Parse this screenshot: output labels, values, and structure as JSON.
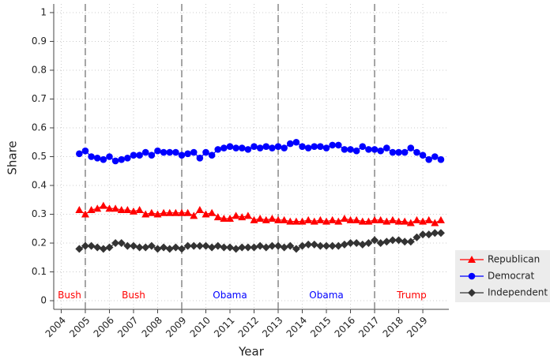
{
  "chart_data": {
    "type": "line",
    "x_label": "Year",
    "y_label": "Share",
    "x": [
      2004.75,
      2005,
      2005.25,
      2005.5,
      2005.75,
      2006,
      2006.25,
      2006.5,
      2006.75,
      2007,
      2007.25,
      2007.5,
      2007.75,
      2008,
      2008.25,
      2008.5,
      2008.75,
      2009,
      2009.25,
      2009.5,
      2009.75,
      2010,
      2010.25,
      2010.5,
      2010.75,
      2011,
      2011.25,
      2011.5,
      2011.75,
      2012,
      2012.25,
      2012.5,
      2012.75,
      2013,
      2013.25,
      2013.5,
      2013.75,
      2014,
      2014.25,
      2014.5,
      2014.75,
      2015,
      2015.25,
      2015.5,
      2015.75,
      2016,
      2016.25,
      2016.5,
      2016.75,
      2017,
      2017.25,
      2017.5,
      2017.75,
      2018,
      2018.25,
      2018.5,
      2018.75,
      2019,
      2019.25,
      2019.5,
      2019.75
    ],
    "series": [
      {
        "name": "Republican",
        "color": "#ff0000",
        "marker": "triangle",
        "values": [
          0.315,
          0.3,
          0.315,
          0.32,
          0.33,
          0.32,
          0.32,
          0.315,
          0.315,
          0.31,
          0.315,
          0.3,
          0.305,
          0.3,
          0.305,
          0.305,
          0.305,
          0.305,
          0.305,
          0.295,
          0.315,
          0.3,
          0.305,
          0.29,
          0.285,
          0.285,
          0.295,
          0.29,
          0.295,
          0.28,
          0.285,
          0.28,
          0.285,
          0.28,
          0.28,
          0.275,
          0.275,
          0.275,
          0.28,
          0.275,
          0.28,
          0.275,
          0.28,
          0.275,
          0.285,
          0.28,
          0.28,
          0.275,
          0.275,
          0.28,
          0.28,
          0.275,
          0.28,
          0.275,
          0.275,
          0.27,
          0.28,
          0.275,
          0.28,
          0.27,
          0.28
        ]
      },
      {
        "name": "Democrat",
        "color": "#0000ff",
        "marker": "circle",
        "values": [
          0.51,
          0.52,
          0.5,
          0.495,
          0.49,
          0.5,
          0.485,
          0.49,
          0.495,
          0.505,
          0.505,
          0.515,
          0.505,
          0.52,
          0.515,
          0.515,
          0.515,
          0.505,
          0.51,
          0.515,
          0.495,
          0.515,
          0.505,
          0.525,
          0.53,
          0.535,
          0.53,
          0.53,
          0.525,
          0.535,
          0.53,
          0.535,
          0.53,
          0.535,
          0.53,
          0.545,
          0.55,
          0.535,
          0.53,
          0.535,
          0.535,
          0.53,
          0.54,
          0.54,
          0.525,
          0.525,
          0.52,
          0.535,
          0.525,
          0.525,
          0.52,
          0.53,
          0.515,
          0.515,
          0.515,
          0.53,
          0.515,
          0.505,
          0.49,
          0.5,
          0.49
        ]
      },
      {
        "name": "Independent",
        "color": "#333333",
        "marker": "diamond",
        "values": [
          0.18,
          0.19,
          0.19,
          0.185,
          0.18,
          0.185,
          0.2,
          0.2,
          0.19,
          0.19,
          0.185,
          0.185,
          0.19,
          0.18,
          0.185,
          0.18,
          0.185,
          0.18,
          0.19,
          0.19,
          0.19,
          0.19,
          0.185,
          0.19,
          0.185,
          0.185,
          0.18,
          0.185,
          0.185,
          0.185,
          0.19,
          0.185,
          0.19,
          0.19,
          0.185,
          0.19,
          0.18,
          0.19,
          0.195,
          0.195,
          0.19,
          0.19,
          0.19,
          0.19,
          0.195,
          0.2,
          0.2,
          0.195,
          0.2,
          0.21,
          0.2,
          0.205,
          0.21,
          0.21,
          0.205,
          0.205,
          0.22,
          0.23,
          0.23,
          0.235,
          0.235
        ]
      }
    ],
    "vlines": [
      2005,
      2009,
      2013,
      2017
    ],
    "terms": [
      {
        "text": "Bush",
        "color": "#ff0000"
      },
      {
        "text": "Bush",
        "color": "#ff0000"
      },
      {
        "text": "Obama",
        "color": "#0000ff"
      },
      {
        "text": "Obama",
        "color": "#0000ff"
      },
      {
        "text": "Trump",
        "color": "#ff0000"
      }
    ],
    "xlim": [
      2003.69,
      2020.08
    ],
    "ylim": [
      -0.03,
      1.03
    ],
    "xticks": [
      2004,
      2005,
      2006,
      2007,
      2008,
      2009,
      2010,
      2011,
      2012,
      2013,
      2014,
      2015,
      2016,
      2017,
      2018,
      2019
    ],
    "yticks": [
      0,
      0.1,
      0.2,
      0.3,
      0.4,
      0.5,
      0.6,
      0.7,
      0.8,
      0.9,
      1
    ],
    "grid": true
  }
}
